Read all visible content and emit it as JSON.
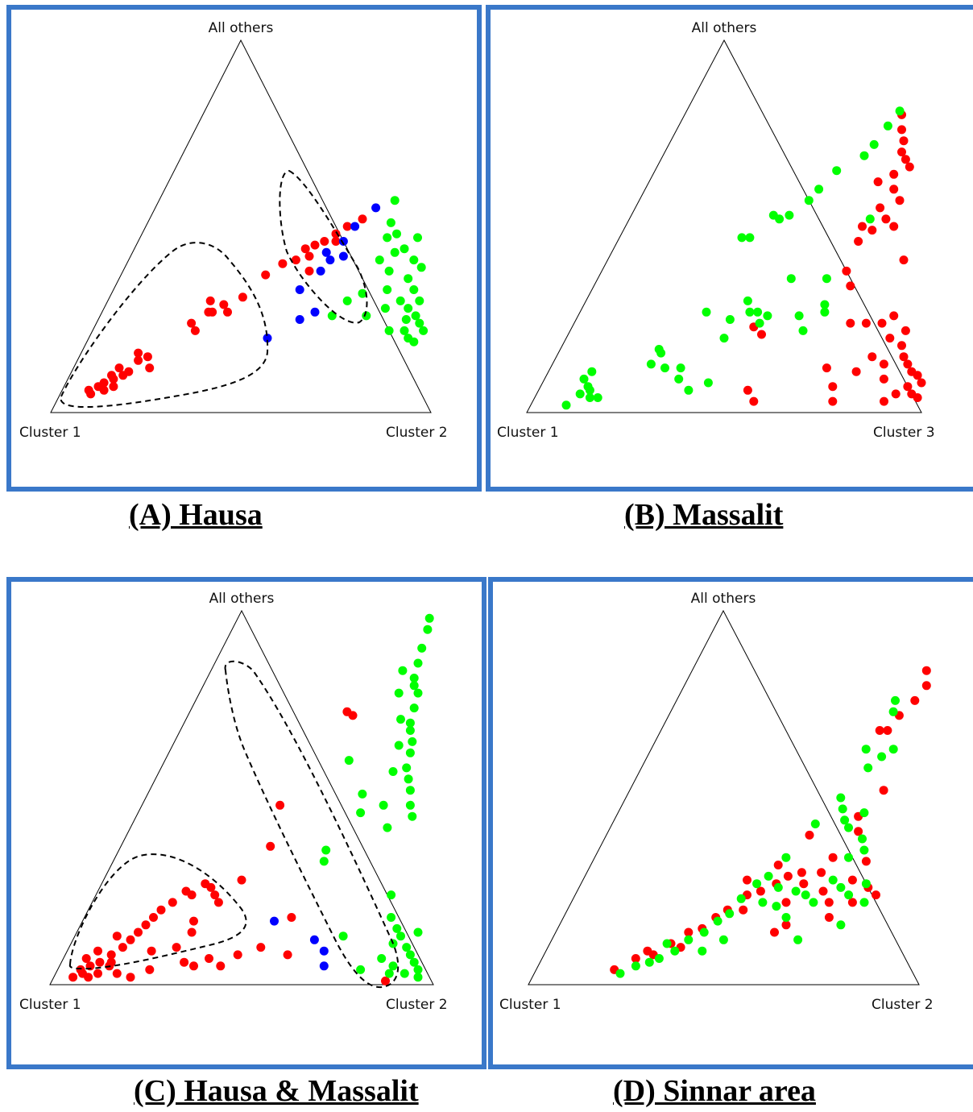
{
  "colors": {
    "red": "#ff0000",
    "green": "#00ff00",
    "blue": "#0000ff",
    "frame": "#3a78c9"
  },
  "captions": {
    "A": "(A) Hausa",
    "B": "(B) Massalit",
    "C": "(C) Hausa & Massalit",
    "D": "(D) Sinnar area"
  },
  "chart_data": [
    {
      "type": "scatter",
      "panel": "A",
      "coords": "ternary",
      "vertex_labels": {
        "top": "All others",
        "left": "Cluster 1",
        "right": "Cluster 2"
      },
      "points_fmt": "[fraction Cluster 2, fraction All others]",
      "red": [
        [
          0.07,
          0.06
        ],
        [
          0.08,
          0.05
        ],
        [
          0.09,
          0.07
        ],
        [
          0.1,
          0.08
        ],
        [
          0.11,
          0.06
        ],
        [
          0.12,
          0.09
        ],
        [
          0.14,
          0.1
        ],
        [
          0.13,
          0.07
        ],
        [
          0.15,
          0.11
        ],
        [
          0.16,
          0.14
        ],
        [
          0.15,
          0.16
        ],
        [
          0.18,
          0.15
        ],
        [
          0.2,
          0.12
        ],
        [
          0.12,
          0.12
        ],
        [
          0.11,
          0.1
        ],
        [
          0.25,
          0.24
        ],
        [
          0.27,
          0.22
        ],
        [
          0.28,
          0.27
        ],
        [
          0.27,
          0.3
        ],
        [
          0.29,
          0.27
        ],
        [
          0.31,
          0.29
        ],
        [
          0.33,
          0.27
        ],
        [
          0.35,
          0.31
        ],
        [
          0.38,
          0.37
        ],
        [
          0.41,
          0.4
        ],
        [
          0.44,
          0.41
        ],
        [
          0.45,
          0.44
        ],
        [
          0.47,
          0.45
        ],
        [
          0.49,
          0.46
        ],
        [
          0.52,
          0.46
        ],
        [
          0.53,
          0.5
        ],
        [
          0.51,
          0.48
        ],
        [
          0.56,
          0.52
        ],
        [
          0.47,
          0.42
        ],
        [
          0.49,
          0.38
        ]
      ],
      "green": [
        [
          0.62,
          0.57
        ],
        [
          0.64,
          0.51
        ],
        [
          0.65,
          0.47
        ],
        [
          0.66,
          0.41
        ],
        [
          0.67,
          0.48
        ],
        [
          0.69,
          0.43
        ],
        [
          0.7,
          0.38
        ],
        [
          0.72,
          0.33
        ],
        [
          0.71,
          0.44
        ],
        [
          0.73,
          0.47
        ],
        [
          0.75,
          0.41
        ],
        [
          0.76,
          0.36
        ],
        [
          0.77,
          0.3
        ],
        [
          0.78,
          0.39
        ],
        [
          0.79,
          0.33
        ],
        [
          0.8,
          0.28
        ],
        [
          0.81,
          0.25
        ],
        [
          0.82,
          0.22
        ],
        [
          0.83,
          0.26
        ],
        [
          0.84,
          0.2
        ],
        [
          0.85,
          0.24
        ],
        [
          0.86,
          0.19
        ],
        [
          0.87,
          0.22
        ],
        [
          0.82,
          0.3
        ],
        [
          0.78,
          0.22
        ],
        [
          0.74,
          0.28
        ],
        [
          0.63,
          0.3
        ],
        [
          0.66,
          0.32
        ],
        [
          0.61,
          0.26
        ],
        [
          0.7,
          0.26
        ]
      ],
      "blue": [
        [
          0.58,
          0.55
        ],
        [
          0.55,
          0.5
        ],
        [
          0.54,
          0.46
        ],
        [
          0.56,
          0.42
        ],
        [
          0.53,
          0.41
        ],
        [
          0.51,
          0.43
        ],
        [
          0.52,
          0.38
        ],
        [
          0.49,
          0.33
        ],
        [
          0.53,
          0.25
        ],
        [
          0.56,
          0.27
        ],
        [
          0.47,
          0.2
        ]
      ]
    },
    {
      "type": "scatter",
      "panel": "B",
      "coords": "ternary",
      "vertex_labels": {
        "top": "All others",
        "left": "Cluster 1",
        "right": "Cluster 3"
      },
      "points_fmt": "[fraction Cluster 3, fraction All others]",
      "red": [
        [
          0.55,
          0.8
        ],
        [
          0.57,
          0.76
        ],
        [
          0.59,
          0.73
        ],
        [
          0.6,
          0.7
        ],
        [
          0.62,
          0.68
        ],
        [
          0.64,
          0.66
        ],
        [
          0.61,
          0.64
        ],
        [
          0.58,
          0.62
        ],
        [
          0.63,
          0.6
        ],
        [
          0.66,
          0.57
        ],
        [
          0.65,
          0.52
        ],
        [
          0.62,
          0.55
        ],
        [
          0.6,
          0.5
        ],
        [
          0.63,
          0.49
        ],
        [
          0.68,
          0.5
        ],
        [
          0.61,
          0.46
        ],
        [
          0.75,
          0.41
        ],
        [
          0.62,
          0.38
        ],
        [
          0.65,
          0.34
        ],
        [
          0.7,
          0.24
        ],
        [
          0.74,
          0.24
        ],
        [
          0.78,
          0.24
        ],
        [
          0.8,
          0.26
        ],
        [
          0.82,
          0.2
        ],
        [
          0.85,
          0.22
        ],
        [
          0.86,
          0.18
        ],
        [
          0.88,
          0.15
        ],
        [
          0.9,
          0.13
        ],
        [
          0.92,
          0.11
        ],
        [
          0.94,
          0.1
        ],
        [
          0.96,
          0.08
        ],
        [
          0.93,
          0.07
        ],
        [
          0.95,
          0.05
        ],
        [
          0.91,
          0.05
        ],
        [
          0.97,
          0.04
        ],
        [
          0.89,
          0.03
        ],
        [
          0.86,
          0.09
        ],
        [
          0.84,
          0.13
        ],
        [
          0.8,
          0.15
        ],
        [
          0.78,
          0.11
        ],
        [
          0.74,
          0.07
        ],
        [
          0.7,
          0.12
        ],
        [
          0.76,
          0.03
        ],
        [
          0.56,
          0.03
        ],
        [
          0.53,
          0.06
        ],
        [
          0.49,
          0.21
        ],
        [
          0.46,
          0.23
        ]
      ],
      "green": [
        [
          0.54,
          0.81
        ],
        [
          0.53,
          0.77
        ],
        [
          0.52,
          0.72
        ],
        [
          0.51,
          0.69
        ],
        [
          0.46,
          0.65
        ],
        [
          0.44,
          0.6
        ],
        [
          0.43,
          0.57
        ],
        [
          0.4,
          0.53
        ],
        [
          0.36,
          0.53
        ],
        [
          0.38,
          0.52
        ],
        [
          0.33,
          0.47
        ],
        [
          0.31,
          0.47
        ],
        [
          0.61,
          0.52
        ],
        [
          0.58,
          0.36
        ],
        [
          0.49,
          0.36
        ],
        [
          0.41,
          0.3
        ],
        [
          0.43,
          0.27
        ],
        [
          0.45,
          0.27
        ],
        [
          0.48,
          0.26
        ],
        [
          0.47,
          0.24
        ],
        [
          0.56,
          0.26
        ],
        [
          0.59,
          0.22
        ],
        [
          0.62,
          0.27
        ],
        [
          0.61,
          0.29
        ],
        [
          0.39,
          0.25
        ],
        [
          0.32,
          0.27
        ],
        [
          0.4,
          0.2
        ],
        [
          0.25,
          0.13
        ],
        [
          0.26,
          0.16
        ],
        [
          0.25,
          0.17
        ],
        [
          0.33,
          0.12
        ],
        [
          0.34,
          0.09
        ],
        [
          0.38,
          0.06
        ],
        [
          0.42,
          0.08
        ],
        [
          0.1,
          0.09
        ],
        [
          0.11,
          0.11
        ],
        [
          0.12,
          0.07
        ],
        [
          0.13,
          0.06
        ],
        [
          0.11,
          0.05
        ],
        [
          0.14,
          0.04
        ],
        [
          0.16,
          0.04
        ],
        [
          0.09,
          0.02
        ],
        [
          0.29,
          0.12
        ]
      ]
    },
    {
      "type": "scatter",
      "panel": "C",
      "coords": "ternary",
      "vertex_labels": {
        "top": "All others",
        "left": "Cluster 1",
        "right": "Cluster 2"
      },
      "points_fmt": "[fraction Cluster 2, fraction All others]",
      "red": [
        [
          0.05,
          0.02
        ],
        [
          0.06,
          0.04
        ],
        [
          0.07,
          0.03
        ],
        [
          0.08,
          0.05
        ],
        [
          0.09,
          0.02
        ],
        [
          0.1,
          0.06
        ],
        [
          0.11,
          0.03
        ],
        [
          0.12,
          0.08
        ],
        [
          0.13,
          0.05
        ],
        [
          0.14,
          0.1
        ],
        [
          0.15,
          0.12
        ],
        [
          0.16,
          0.14
        ],
        [
          0.17,
          0.16
        ],
        [
          0.18,
          0.18
        ],
        [
          0.19,
          0.2
        ],
        [
          0.21,
          0.22
        ],
        [
          0.23,
          0.25
        ],
        [
          0.25,
          0.24
        ],
        [
          0.27,
          0.27
        ],
        [
          0.29,
          0.26
        ],
        [
          0.31,
          0.24
        ],
        [
          0.33,
          0.22
        ],
        [
          0.36,
          0.28
        ],
        [
          0.29,
          0.17
        ],
        [
          0.3,
          0.14
        ],
        [
          0.28,
          0.1
        ],
        [
          0.32,
          0.06
        ],
        [
          0.35,
          0.05
        ],
        [
          0.38,
          0.07
        ],
        [
          0.42,
          0.05
        ],
        [
          0.45,
          0.08
        ],
        [
          0.5,
          0.1
        ],
        [
          0.54,
          0.18
        ],
        [
          0.39,
          0.37
        ],
        [
          0.36,
          0.48
        ],
        [
          0.41,
          0.73
        ],
        [
          0.43,
          0.72
        ],
        [
          0.13,
          0.06
        ],
        [
          0.16,
          0.03
        ],
        [
          0.08,
          0.09
        ],
        [
          0.06,
          0.07
        ],
        [
          0.2,
          0.02
        ],
        [
          0.24,
          0.04
        ],
        [
          0.22,
          0.09
        ],
        [
          0.11,
          0.13
        ],
        [
          0.87,
          0.01
        ],
        [
          0.58,
          0.08
        ]
      ],
      "green": [
        [
          0.5,
          0.98
        ],
        [
          0.51,
          0.95
        ],
        [
          0.52,
          0.9
        ],
        [
          0.53,
          0.86
        ],
        [
          0.54,
          0.82
        ],
        [
          0.55,
          0.8
        ],
        [
          0.57,
          0.78
        ],
        [
          0.58,
          0.74
        ],
        [
          0.59,
          0.7
        ],
        [
          0.6,
          0.68
        ],
        [
          0.62,
          0.65
        ],
        [
          0.63,
          0.62
        ],
        [
          0.64,
          0.58
        ],
        [
          0.66,
          0.55
        ],
        [
          0.68,
          0.52
        ],
        [
          0.7,
          0.48
        ],
        [
          0.72,
          0.45
        ],
        [
          0.5,
          0.84
        ],
        [
          0.52,
          0.78
        ],
        [
          0.56,
          0.71
        ],
        [
          0.59,
          0.64
        ],
        [
          0.61,
          0.57
        ],
        [
          0.56,
          0.51
        ],
        [
          0.58,
          0.46
        ],
        [
          0.63,
          0.48
        ],
        [
          0.67,
          0.42
        ],
        [
          0.54,
          0.36
        ],
        [
          0.55,
          0.33
        ],
        [
          0.77,
          0.24
        ],
        [
          0.8,
          0.18
        ],
        [
          0.83,
          0.15
        ],
        [
          0.85,
          0.13
        ],
        [
          0.88,
          0.1
        ],
        [
          0.9,
          0.08
        ],
        [
          0.92,
          0.06
        ],
        [
          0.94,
          0.04
        ],
        [
          0.95,
          0.02
        ],
        [
          0.91,
          0.03
        ],
        [
          0.87,
          0.05
        ],
        [
          0.83,
          0.07
        ],
        [
          0.79,
          0.04
        ],
        [
          0.84,
          0.11
        ],
        [
          0.89,
          0.14
        ],
        [
          0.7,
          0.13
        ],
        [
          0.87,
          0.03
        ],
        [
          0.48,
          0.6
        ]
      ],
      "blue": [
        [
          0.5,
          0.17
        ],
        [
          0.63,
          0.12
        ],
        [
          0.67,
          0.09
        ],
        [
          0.69,
          0.05
        ]
      ]
    },
    {
      "type": "scatter",
      "panel": "D",
      "coords": "ternary",
      "vertex_labels": {
        "top": "All others",
        "left": "Cluster 1",
        "right": "Cluster 2"
      },
      "points_fmt": "[fraction Cluster 2, fraction All others]",
      "red": [
        [
          0.2,
          0.04
        ],
        [
          0.24,
          0.07
        ],
        [
          0.26,
          0.09
        ],
        [
          0.28,
          0.08
        ],
        [
          0.31,
          0.11
        ],
        [
          0.34,
          0.1
        ],
        [
          0.37,
          0.15
        ],
        [
          0.39,
          0.18
        ],
        [
          0.41,
          0.2
        ],
        [
          0.44,
          0.24
        ],
        [
          0.47,
          0.25
        ],
        [
          0.5,
          0.27
        ],
        [
          0.52,
          0.29
        ],
        [
          0.55,
          0.3
        ],
        [
          0.57,
          0.27
        ],
        [
          0.6,
          0.3
        ],
        [
          0.63,
          0.25
        ],
        [
          0.66,
          0.22
        ],
        [
          0.69,
          0.28
        ],
        [
          0.72,
          0.22
        ],
        [
          0.74,
          0.26
        ],
        [
          0.77,
          0.24
        ],
        [
          0.55,
          0.22
        ],
        [
          0.58,
          0.16
        ],
        [
          0.56,
          0.14
        ],
        [
          0.61,
          0.34
        ],
        [
          0.64,
          0.41
        ],
        [
          0.62,
          0.45
        ],
        [
          0.65,
          0.52
        ],
        [
          0.58,
          0.68
        ],
        [
          0.59,
          0.72
        ],
        [
          0.61,
          0.76
        ],
        [
          0.62,
          0.8
        ],
        [
          0.6,
          0.84
        ],
        [
          0.56,
          0.68
        ],
        [
          0.45,
          0.2
        ],
        [
          0.34,
          0.14
        ],
        [
          0.42,
          0.28
        ],
        [
          0.48,
          0.32
        ],
        [
          0.7,
          0.33
        ],
        [
          0.68,
          0.18
        ],
        [
          0.52,
          0.4
        ]
      ],
      "green": [
        [
          0.22,
          0.03
        ],
        [
          0.25,
          0.05
        ],
        [
          0.28,
          0.06
        ],
        [
          0.3,
          0.07
        ],
        [
          0.33,
          0.09
        ],
        [
          0.35,
          0.12
        ],
        [
          0.38,
          0.14
        ],
        [
          0.4,
          0.17
        ],
        [
          0.42,
          0.19
        ],
        [
          0.43,
          0.23
        ],
        [
          0.45,
          0.27
        ],
        [
          0.47,
          0.29
        ],
        [
          0.49,
          0.22
        ],
        [
          0.51,
          0.26
        ],
        [
          0.53,
          0.21
        ],
        [
          0.56,
          0.25
        ],
        [
          0.59,
          0.24
        ],
        [
          0.62,
          0.22
        ],
        [
          0.64,
          0.28
        ],
        [
          0.67,
          0.26
        ],
        [
          0.7,
          0.24
        ],
        [
          0.73,
          0.27
        ],
        [
          0.75,
          0.22
        ],
        [
          0.72,
          0.16
        ],
        [
          0.63,
          0.12
        ],
        [
          0.57,
          0.18
        ],
        [
          0.49,
          0.34
        ],
        [
          0.52,
          0.43
        ],
        [
          0.55,
          0.5
        ],
        [
          0.57,
          0.47
        ],
        [
          0.59,
          0.44
        ],
        [
          0.61,
          0.42
        ],
        [
          0.63,
          0.46
        ],
        [
          0.66,
          0.39
        ],
        [
          0.68,
          0.36
        ],
        [
          0.65,
          0.34
        ],
        [
          0.58,
          0.58
        ],
        [
          0.6,
          0.61
        ],
        [
          0.62,
          0.63
        ],
        [
          0.57,
          0.73
        ],
        [
          0.56,
          0.76
        ],
        [
          0.55,
          0.63
        ],
        [
          0.44,
          0.12
        ],
        [
          0.3,
          0.11
        ],
        [
          0.4,
          0.09
        ]
      ]
    }
  ]
}
